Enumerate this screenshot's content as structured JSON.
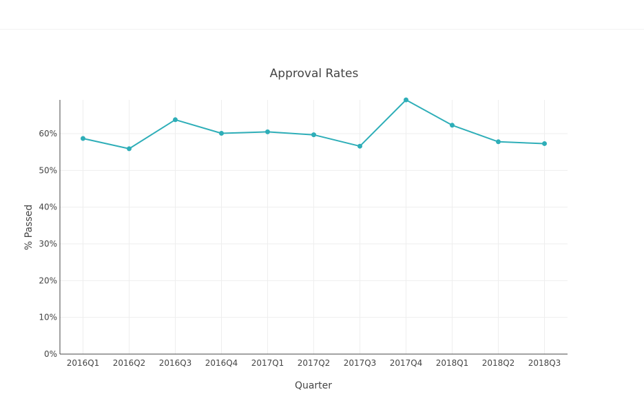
{
  "chart_data": {
    "type": "line",
    "title": "Approval Rates",
    "xlabel": "Quarter",
    "ylabel": "% Passed",
    "categories": [
      "2016Q1",
      "2016Q2",
      "2016Q3",
      "2016Q4",
      "2017Q1",
      "2017Q2",
      "2017Q3",
      "2017Q4",
      "2018Q1",
      "2018Q2",
      "2018Q3"
    ],
    "series": [
      {
        "values": [
          58.7,
          55.9,
          63.8,
          60.1,
          60.5,
          59.7,
          56.6,
          69.2,
          62.3,
          57.8,
          57.3
        ],
        "color": "#2eaeb8"
      }
    ],
    "ylim": [
      0,
      69.2
    ],
    "yticks": [
      0,
      10,
      20,
      30,
      40,
      50,
      60
    ],
    "ytick_labels": [
      "0%",
      "10%",
      "20%",
      "30%",
      "40%",
      "50%",
      "60%"
    ],
    "grid": true,
    "legend": "none"
  }
}
